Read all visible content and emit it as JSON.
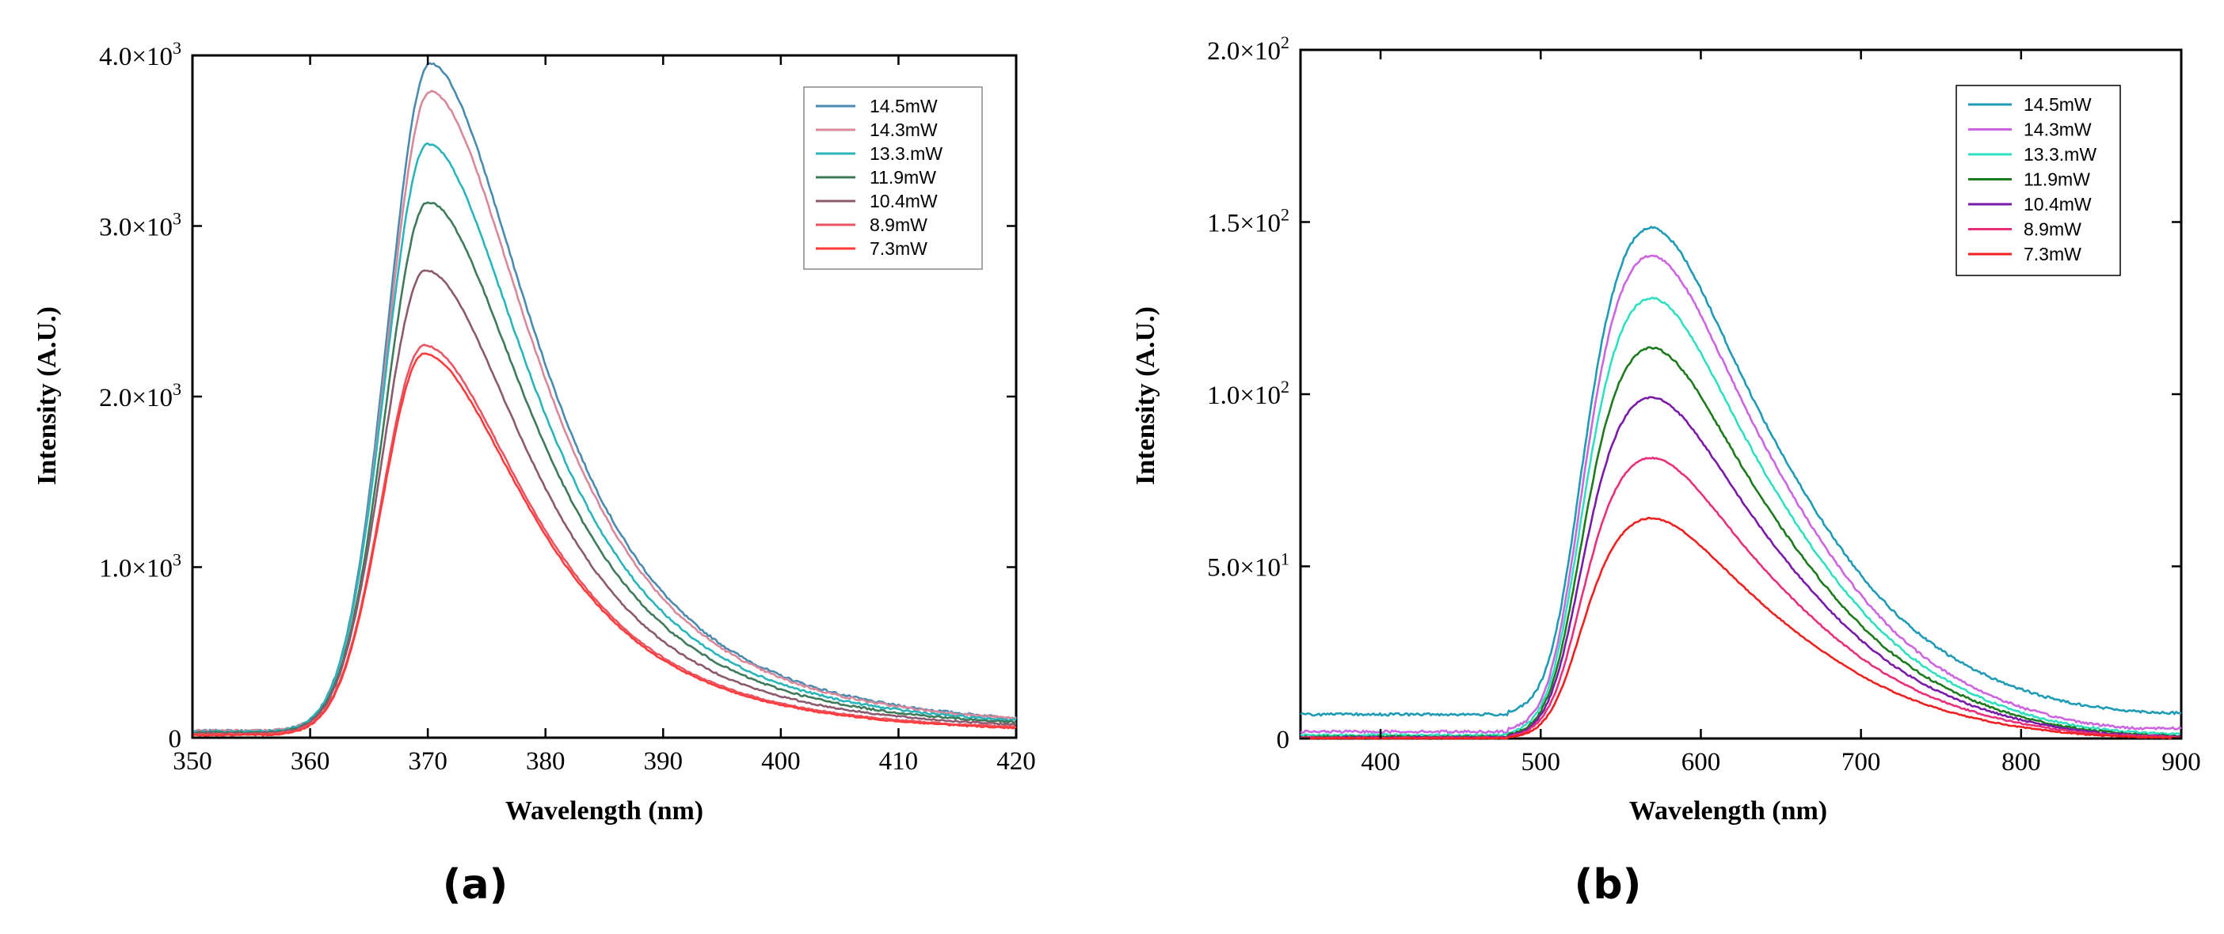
{
  "chart_data": [
    {
      "type": "line",
      "panel_label": "(a)",
      "xlabel": "Wavelength (nm)",
      "ylabel": "Intensity (A.U.)",
      "xlim": [
        350,
        420
      ],
      "ylim": [
        0,
        4000
      ],
      "xticks": [
        350,
        360,
        370,
        380,
        390,
        400,
        410,
        420
      ],
      "xtick_labels": [
        "350",
        "360",
        "370",
        "380",
        "390",
        "400",
        "410",
        "420"
      ],
      "yticks": [
        0,
        1000,
        2000,
        3000,
        4000
      ],
      "ytick_labels": [
        {
          "mantissa": "0",
          "exponent": ""
        },
        {
          "mantissa": "1.0×10",
          "exponent": "3"
        },
        {
          "mantissa": "2.0×10",
          "exponent": "3"
        },
        {
          "mantissa": "3.0×10",
          "exponent": "3"
        },
        {
          "mantissa": "4.0×10",
          "exponent": "3"
        }
      ],
      "legend_position": "top-right",
      "series": [
        {
          "name": "14.5mW",
          "color": "#4a8bb0",
          "peak_x": 370.2,
          "peak": 3950,
          "baseline": 40
        },
        {
          "name": "14.3mW",
          "color": "#d9899c",
          "peak_x": 370.2,
          "peak": 3790,
          "baseline": 40
        },
        {
          "name": "13.3.mW",
          "color": "#2ab5ba",
          "peak_x": 370.0,
          "peak": 3480,
          "baseline": 35
        },
        {
          "name": "11.9mW",
          "color": "#3f7a5a",
          "peak_x": 370.0,
          "peak": 3140,
          "baseline": 30
        },
        {
          "name": "10.4mW",
          "color": "#8b5a6e",
          "peak_x": 369.8,
          "peak": 2740,
          "baseline": 25
        },
        {
          "name": "8.9mW",
          "color": "#e85563",
          "peak_x": 369.7,
          "peak": 2300,
          "baseline": 20
        },
        {
          "name": "7.3mW",
          "color": "#ff3b3b",
          "peak_x": 369.7,
          "peak": 2250,
          "baseline": 15
        }
      ]
    },
    {
      "type": "line",
      "panel_label": "(b)",
      "xlabel": "Wavelength (nm)",
      "ylabel": "Intensity (A.U.)",
      "xlim": [
        350,
        900
      ],
      "ylim": [
        0,
        200
      ],
      "xticks": [
        400,
        500,
        600,
        700,
        800,
        900
      ],
      "xtick_labels": [
        "400",
        "500",
        "600",
        "700",
        "800",
        "900"
      ],
      "yticks": [
        0,
        50,
        100,
        150,
        200
      ],
      "ytick_labels": [
        {
          "mantissa": "0",
          "exponent": ""
        },
        {
          "mantissa": "5.0×10",
          "exponent": "1"
        },
        {
          "mantissa": "1.0×10",
          "exponent": "2"
        },
        {
          "mantissa": "1.5×10",
          "exponent": "2"
        },
        {
          "mantissa": "2.0×10",
          "exponent": "2"
        }
      ],
      "legend_position": "top-right",
      "series": [
        {
          "name": "14.5mW",
          "color": "#1f9bb5",
          "peak": 144,
          "baseline": 7,
          "tail": 7
        },
        {
          "name": "14.3mW",
          "color": "#cc66e0",
          "peak": 136,
          "baseline": 2,
          "tail": 3
        },
        {
          "name": "13.3.mW",
          "color": "#2fe0c0",
          "peak": 124,
          "baseline": 1,
          "tail": 1
        },
        {
          "name": "11.9mW",
          "color": "#1e7a1e",
          "peak": 110,
          "baseline": 0.5,
          "tail": 0.5
        },
        {
          "name": "10.4mW",
          "color": "#7a1aa8",
          "peak": 96,
          "baseline": 0.3,
          "tail": 0.3
        },
        {
          "name": "8.9mW",
          "color": "#e8307a",
          "peak": 79,
          "baseline": 0.2,
          "tail": 0.2
        },
        {
          "name": "7.3mW",
          "color": "#ee2020",
          "peak": 62,
          "baseline": 0,
          "tail": 0
        }
      ]
    }
  ]
}
